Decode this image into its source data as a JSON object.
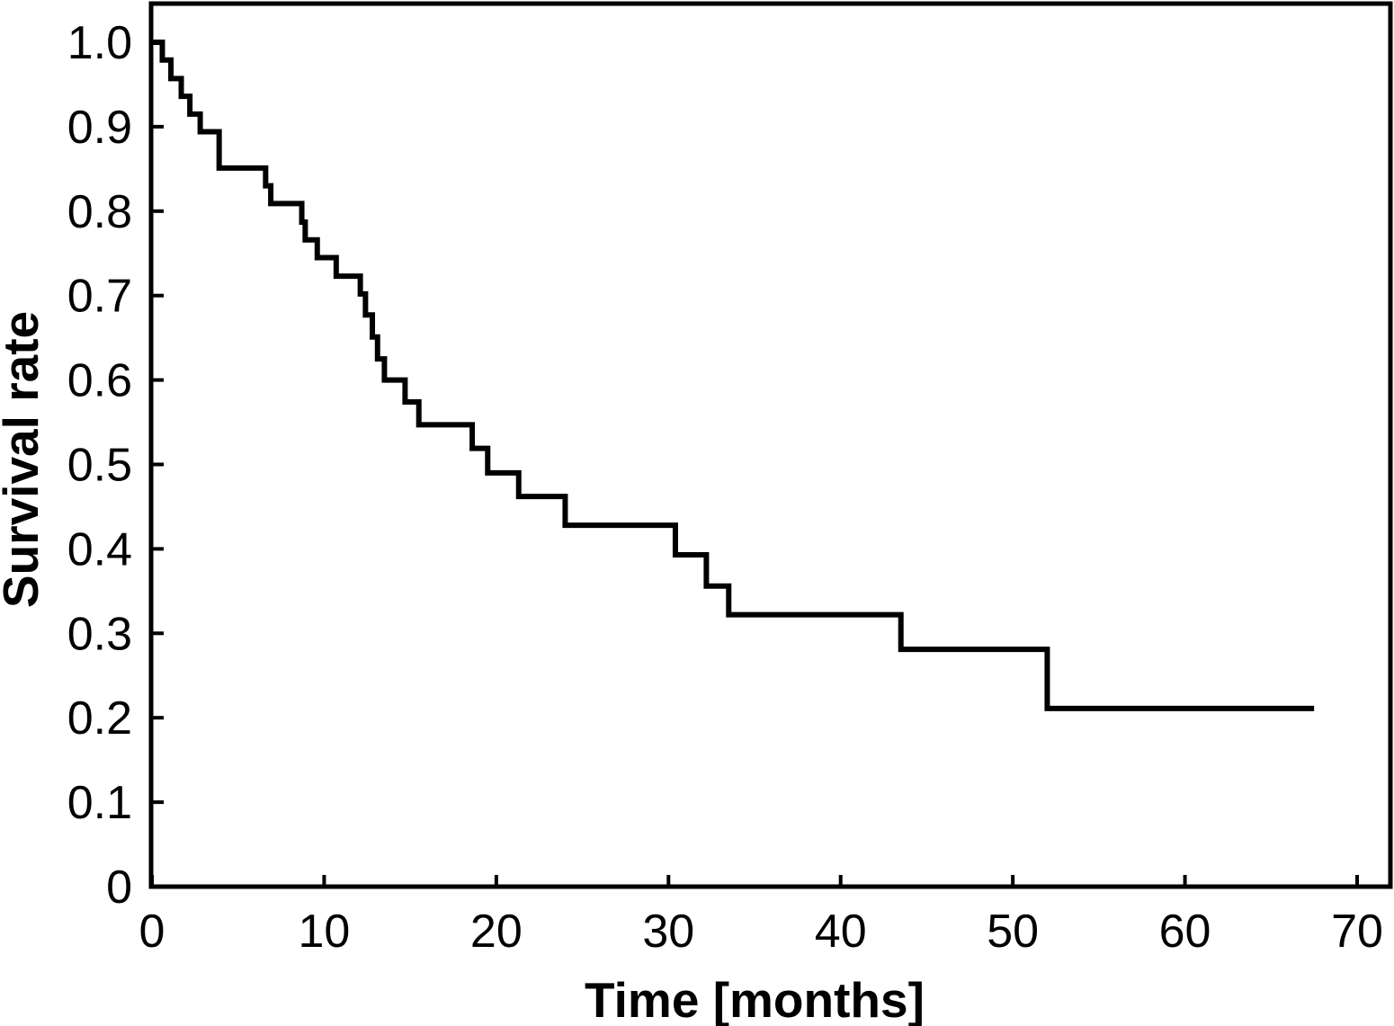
{
  "figure": {
    "background_color": "#ffffff",
    "line_color": "#000000",
    "text_color": "#000000"
  },
  "chart_data": {
    "type": "line",
    "subtype": "kaplan-meier-step-curve",
    "title": "",
    "xlabel": "Time [months]",
    "ylabel": "Survival rate",
    "xlim": [
      0,
      70
    ],
    "ylim": [
      0,
      1.0
    ],
    "grid": false,
    "legend_position": "none",
    "x_tick_values": [
      0,
      10,
      20,
      30,
      40,
      50,
      60,
      70
    ],
    "x_tick_labels": [
      "0",
      "10",
      "20",
      "30",
      "40",
      "50",
      "60",
      "70"
    ],
    "y_tick_values": [
      0,
      0.1,
      0.2,
      0.3,
      0.4,
      0.5,
      0.6,
      0.7,
      0.8,
      0.9,
      1.0
    ],
    "y_tick_labels": [
      "0",
      "0.1",
      "0.2",
      "0.3",
      "0.4",
      "0.5",
      "0.6",
      "0.7",
      "0.8",
      "0.9",
      "1.0"
    ],
    "series": [
      {
        "name": "Survival rate",
        "color": "#000000",
        "step_mode": "post",
        "step_points": [
          [
            0,
            1.0
          ],
          [
            0.6,
            0.979
          ],
          [
            1.1,
            0.957
          ],
          [
            1.7,
            0.936
          ],
          [
            2.2,
            0.915
          ],
          [
            2.8,
            0.894
          ],
          [
            3.9,
            0.851
          ],
          [
            6.6,
            0.83
          ],
          [
            6.9,
            0.809
          ],
          [
            8.7,
            0.787
          ],
          [
            8.9,
            0.766
          ],
          [
            9.6,
            0.745
          ],
          [
            10.7,
            0.723
          ],
          [
            12.1,
            0.702
          ],
          [
            12.4,
            0.677
          ],
          [
            12.8,
            0.651
          ],
          [
            13.1,
            0.625
          ],
          [
            13.5,
            0.6
          ],
          [
            14.7,
            0.574
          ],
          [
            15.5,
            0.547
          ],
          [
            18.6,
            0.519
          ],
          [
            19.5,
            0.49
          ],
          [
            21.3,
            0.462
          ],
          [
            24.0,
            0.428
          ],
          [
            30.4,
            0.393
          ],
          [
            32.2,
            0.356
          ],
          [
            33.5,
            0.322
          ],
          [
            43.5,
            0.281
          ],
          [
            52.0,
            0.211
          ]
        ],
        "end_time": 67.5
      }
    ]
  }
}
